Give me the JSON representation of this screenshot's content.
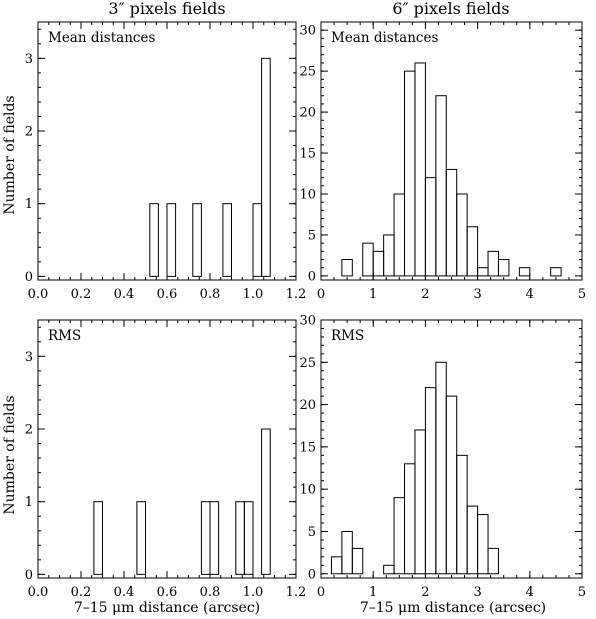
{
  "column_titles": [
    "3″ pixels fields",
    "6″ pixels fields"
  ],
  "xlabel": "7–15 μm distance (arcsec)",
  "ylabel": "Number of fields",
  "chart_data": [
    {
      "type": "bar",
      "title": "Mean distances",
      "column": "3″ pixels fields",
      "xlabel": "",
      "ylabel": "Number of fields",
      "xlim": [
        0,
        1.2
      ],
      "ylim": [
        -0.05,
        3.5
      ],
      "xticks": [
        0.0,
        0.2,
        0.4,
        0.6,
        0.8,
        1.0,
        1.2
      ],
      "xtick_labels": [
        "0.0",
        "0.2",
        "0.4",
        "0.6",
        "0.8",
        "1.0",
        "1.2"
      ],
      "yticks": [
        0,
        1,
        2,
        3
      ],
      "ytick_labels": [
        "0",
        "1",
        "2",
        "3"
      ],
      "bin_width": 0.04,
      "bins": [
        {
          "x0": 0.52,
          "count": 1
        },
        {
          "x0": 0.6,
          "count": 1
        },
        {
          "x0": 0.72,
          "count": 1
        },
        {
          "x0": 0.86,
          "count": 1
        },
        {
          "x0": 1.0,
          "count": 1
        },
        {
          "x0": 1.04,
          "count": 3
        }
      ]
    },
    {
      "type": "bar",
      "title": "Mean distances",
      "column": "6″ pixels fields",
      "xlabel": "",
      "ylabel": "",
      "xlim": [
        0,
        5
      ],
      "ylim": [
        -0.5,
        31
      ],
      "xticks": [
        0,
        1,
        2,
        3,
        4,
        5
      ],
      "xtick_labels": [
        "0",
        "1",
        "2",
        "3",
        "4",
        "5"
      ],
      "yticks": [
        0,
        5,
        10,
        15,
        20,
        25,
        30
      ],
      "ytick_labels": [
        "0",
        "5",
        "10",
        "15",
        "20",
        "25",
        "30"
      ],
      "bin_width": 0.2,
      "bins": [
        {
          "x0": 0.4,
          "count": 2
        },
        {
          "x0": 0.8,
          "count": 4
        },
        {
          "x0": 1.0,
          "count": 3
        },
        {
          "x0": 1.2,
          "count": 5
        },
        {
          "x0": 1.4,
          "count": 10
        },
        {
          "x0": 1.6,
          "count": 25
        },
        {
          "x0": 1.8,
          "count": 26
        },
        {
          "x0": 2.0,
          "count": 12
        },
        {
          "x0": 2.2,
          "count": 22
        },
        {
          "x0": 2.4,
          "count": 13
        },
        {
          "x0": 2.6,
          "count": 10
        },
        {
          "x0": 2.8,
          "count": 6
        },
        {
          "x0": 3.0,
          "count": 1
        },
        {
          "x0": 3.2,
          "count": 3
        },
        {
          "x0": 3.4,
          "count": 2
        },
        {
          "x0": 3.8,
          "count": 1
        },
        {
          "x0": 4.4,
          "count": 1
        }
      ]
    },
    {
      "type": "bar",
      "title": "RMS",
      "column": "3″ pixels fields",
      "xlabel": "7–15 μm distance (arcsec)",
      "ylabel": "Number of fields",
      "xlim": [
        0,
        1.2
      ],
      "ylim": [
        -0.05,
        3.5
      ],
      "xticks": [
        0.0,
        0.2,
        0.4,
        0.6,
        0.8,
        1.0,
        1.2
      ],
      "xtick_labels": [
        "0.0",
        "0.2",
        "0.4",
        "0.6",
        "0.8",
        "1.0",
        "1.2"
      ],
      "yticks": [
        0,
        1,
        2,
        3
      ],
      "ytick_labels": [
        "0",
        "1",
        "2",
        "3"
      ],
      "bin_width": 0.04,
      "bins": [
        {
          "x0": 0.26,
          "count": 1
        },
        {
          "x0": 0.46,
          "count": 1
        },
        {
          "x0": 0.76,
          "count": 1
        },
        {
          "x0": 0.8,
          "count": 1
        },
        {
          "x0": 0.92,
          "count": 1
        },
        {
          "x0": 0.96,
          "count": 1
        },
        {
          "x0": 1.04,
          "count": 2
        }
      ]
    },
    {
      "type": "bar",
      "title": "RMS",
      "column": "6″ pixels fields",
      "xlabel": "7–15 μm distance (arcsec)",
      "ylabel": "",
      "xlim": [
        0,
        5
      ],
      "ylim": [
        -0.5,
        30
      ],
      "xticks": [
        0,
        1,
        2,
        3,
        4,
        5
      ],
      "xtick_labels": [
        "0",
        "1",
        "2",
        "3",
        "4",
        "5"
      ],
      "yticks": [
        0,
        5,
        10,
        15,
        20,
        25,
        30
      ],
      "ytick_labels": [
        "0",
        "5",
        "10",
        "15",
        "20",
        "25",
        "30"
      ],
      "bin_width": 0.2,
      "bins": [
        {
          "x0": 0.2,
          "count": 2
        },
        {
          "x0": 0.4,
          "count": 5
        },
        {
          "x0": 0.6,
          "count": 3
        },
        {
          "x0": 1.2,
          "count": 1
        },
        {
          "x0": 1.4,
          "count": 9
        },
        {
          "x0": 1.6,
          "count": 13
        },
        {
          "x0": 1.8,
          "count": 17
        },
        {
          "x0": 2.0,
          "count": 22
        },
        {
          "x0": 2.2,
          "count": 25
        },
        {
          "x0": 2.4,
          "count": 21
        },
        {
          "x0": 2.6,
          "count": 14
        },
        {
          "x0": 2.8,
          "count": 8
        },
        {
          "x0": 3.0,
          "count": 7
        },
        {
          "x0": 3.2,
          "count": 3
        }
      ]
    }
  ]
}
